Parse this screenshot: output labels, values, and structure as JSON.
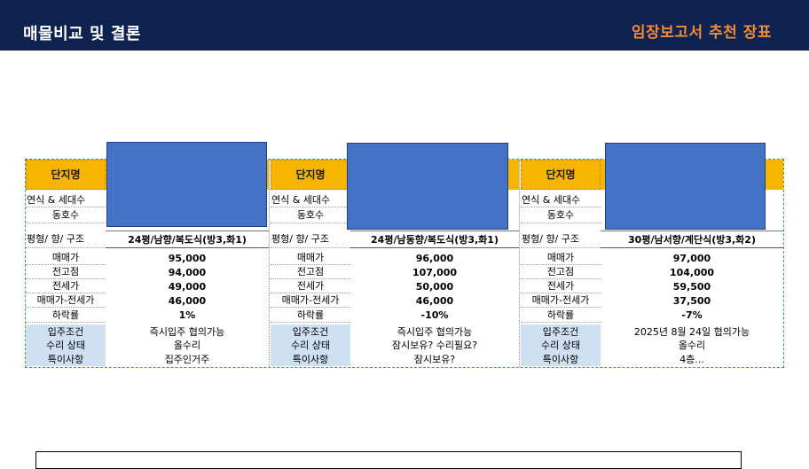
{
  "header": {
    "title": "매물비교 및 결론",
    "report_title": "임장보고서 추천 장표"
  },
  "row_labels": {
    "complex": "단지명",
    "year_units": "연식 & 세대수",
    "building_unit": "동호수",
    "spec": "평형/ 향/ 구조",
    "sale_price": "매매가",
    "peak_price": "전고점",
    "jeonse_price": "전세가",
    "gap": "매매가-전세가",
    "decline_rate": "하락률",
    "move_in": "입주조건",
    "repair": "수리 상태",
    "notes": "특이사항"
  },
  "properties": [
    {
      "spec": "24평/남향/복도식(방3,화1)",
      "sale_price": "95,000",
      "peak_price": "94,000",
      "jeonse_price": "49,000",
      "gap": "46,000",
      "decline_rate": "1%",
      "move_in": "즉시입주 협의가능",
      "repair": "올수리",
      "notes": "집주인거주"
    },
    {
      "spec": "24평/남동향/복도식(방3,화1)",
      "sale_price": "96,000",
      "peak_price": "107,000",
      "jeonse_price": "50,000",
      "gap": "46,000",
      "decline_rate": "-10%",
      "move_in": "즉시입주 협의가능",
      "repair": "잠시보유? 수리필요?",
      "notes": "잠시보유?"
    },
    {
      "spec": "30평/남서향/계단식(방3,화2)",
      "sale_price": "97,000",
      "peak_price": "104,000",
      "jeonse_price": "59,500",
      "gap": "37,500",
      "decline_rate": "-7%",
      "move_in": "2025년 8월 24일 협의가능",
      "repair": "올수리",
      "notes": "4층..."
    }
  ],
  "colors": {
    "header_bg": "#0e2250",
    "report_title": "#f28a3a",
    "label_highlight": "#f7b500",
    "redaction": "#4472c4",
    "label_blue": "#cfe0f3"
  }
}
